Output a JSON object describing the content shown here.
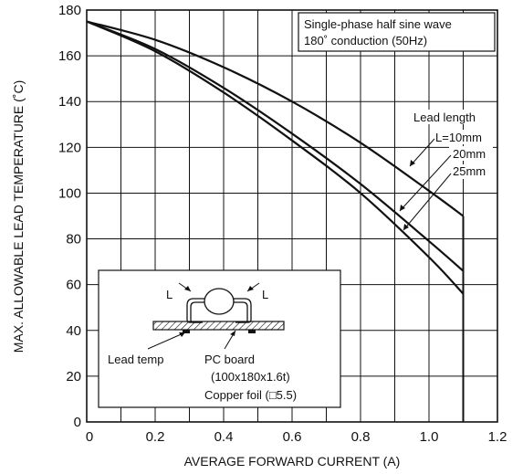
{
  "chart_data": {
    "type": "line",
    "xlabel": "AVERAGE FORWARD CURRENT (A)",
    "ylabel": "MAX. ALLOWABLE LEAD TEMPERATURE (˚C)",
    "xlim": [
      0,
      1.2
    ],
    "ylim": [
      0,
      180
    ],
    "x_ticks": [
      "0",
      "0.2",
      "0.4",
      "0.6",
      "0.8",
      "1.0",
      "1.2"
    ],
    "y_ticks": [
      "0",
      "20",
      "40",
      "60",
      "80",
      "100",
      "120",
      "140",
      "160",
      "180"
    ],
    "grid": true,
    "series": [
      {
        "name": "L=10mm",
        "x": [
          0,
          0.2,
          0.4,
          0.6,
          0.8,
          1.0,
          1.1
        ],
        "y": [
          175,
          167,
          155,
          140,
          122,
          101,
          90
        ]
      },
      {
        "name": "20mm",
        "x": [
          0,
          0.2,
          0.4,
          0.6,
          0.8,
          1.0,
          1.1
        ],
        "y": [
          175,
          163,
          146,
          126,
          104,
          79,
          66
        ]
      },
      {
        "name": "25mm",
        "x": [
          0,
          0.2,
          0.4,
          0.6,
          0.8,
          1.0,
          1.1
        ],
        "y": [
          175,
          162,
          144,
          123,
          100,
          72,
          56
        ]
      }
    ],
    "cutoff": {
      "x": 1.1,
      "y_top": 90
    },
    "conditions_box": [
      "Single-phase half sine wave",
      "180˚ conduction (50Hz)"
    ],
    "lead_length_label": "Lead length",
    "inset": {
      "dimension_label_left": "L",
      "dimension_label_right": "L",
      "lead_temp_label": "Lead temp",
      "pc_board_lines": [
        "PC board",
        "(100x180x1.6t)",
        "Copper foil (",
        "5.5)"
      ]
    }
  }
}
